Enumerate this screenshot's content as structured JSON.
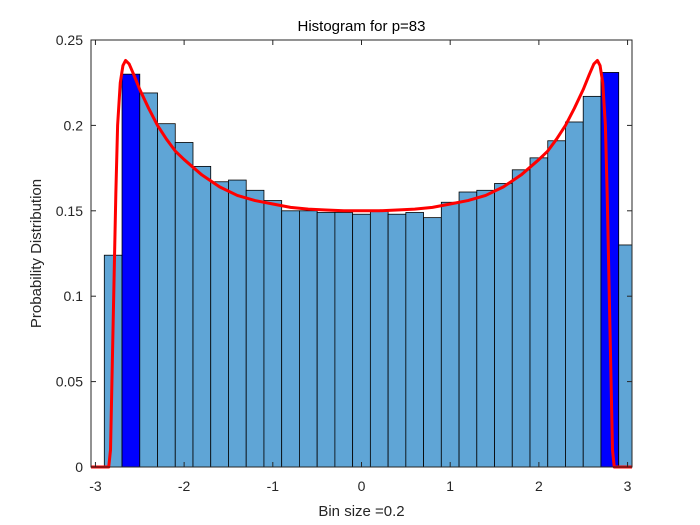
{
  "chart_data": {
    "type": "bar",
    "title": "Histogram for p=83",
    "xlabel": "Bin size =0.2",
    "ylabel": "Probability Distribution",
    "xlim": [
      -3.05,
      3.05
    ],
    "ylim": [
      0,
      0.25
    ],
    "x_ticks": [
      -3,
      -2,
      -1,
      0,
      1,
      2,
      3
    ],
    "x_tick_labels": [
      "-3",
      "-2",
      "-1",
      "0",
      "1",
      "2",
      "3"
    ],
    "y_ticks": [
      0,
      0.05,
      0.1,
      0.15,
      0.2,
      0.25
    ],
    "y_tick_labels": [
      "0",
      "0.05",
      "0.1",
      "0.15",
      "0.2",
      "0.25"
    ],
    "grid": false,
    "bin_width": 0.2,
    "bars": [
      {
        "x0": -2.9,
        "x1": -2.7,
        "value": 0.124,
        "highlight": false
      },
      {
        "x0": -2.7,
        "x1": -2.5,
        "value": 0.23,
        "highlight": true
      },
      {
        "x0": -2.5,
        "x1": -2.3,
        "value": 0.219,
        "highlight": false
      },
      {
        "x0": -2.3,
        "x1": -2.1,
        "value": 0.201,
        "highlight": false
      },
      {
        "x0": -2.1,
        "x1": -1.9,
        "value": 0.19,
        "highlight": false
      },
      {
        "x0": -1.9,
        "x1": -1.7,
        "value": 0.176,
        "highlight": false
      },
      {
        "x0": -1.7,
        "x1": -1.5,
        "value": 0.167,
        "highlight": false
      },
      {
        "x0": -1.5,
        "x1": -1.3,
        "value": 0.168,
        "highlight": false
      },
      {
        "x0": -1.3,
        "x1": -1.1,
        "value": 0.162,
        "highlight": false
      },
      {
        "x0": -1.1,
        "x1": -0.9,
        "value": 0.156,
        "highlight": false
      },
      {
        "x0": -0.9,
        "x1": -0.7,
        "value": 0.15,
        "highlight": false
      },
      {
        "x0": -0.7,
        "x1": -0.5,
        "value": 0.15,
        "highlight": false
      },
      {
        "x0": -0.5,
        "x1": -0.3,
        "value": 0.149,
        "highlight": false
      },
      {
        "x0": -0.3,
        "x1": -0.1,
        "value": 0.149,
        "highlight": false
      },
      {
        "x0": -0.1,
        "x1": 0.1,
        "value": 0.148,
        "highlight": false
      },
      {
        "x0": 0.1,
        "x1": 0.3,
        "value": 0.15,
        "highlight": false
      },
      {
        "x0": 0.3,
        "x1": 0.5,
        "value": 0.148,
        "highlight": false
      },
      {
        "x0": 0.5,
        "x1": 0.7,
        "value": 0.149,
        "highlight": false
      },
      {
        "x0": 0.7,
        "x1": 0.9,
        "value": 0.146,
        "highlight": false
      },
      {
        "x0": 0.9,
        "x1": 1.1,
        "value": 0.155,
        "highlight": false
      },
      {
        "x0": 1.1,
        "x1": 1.3,
        "value": 0.161,
        "highlight": false
      },
      {
        "x0": 1.3,
        "x1": 1.5,
        "value": 0.162,
        "highlight": false
      },
      {
        "x0": 1.5,
        "x1": 1.7,
        "value": 0.166,
        "highlight": false
      },
      {
        "x0": 1.7,
        "x1": 1.9,
        "value": 0.174,
        "highlight": false
      },
      {
        "x0": 1.9,
        "x1": 2.1,
        "value": 0.181,
        "highlight": false
      },
      {
        "x0": 2.1,
        "x1": 2.3,
        "value": 0.191,
        "highlight": false
      },
      {
        "x0": 2.3,
        "x1": 2.5,
        "value": 0.202,
        "highlight": false
      },
      {
        "x0": 2.5,
        "x1": 2.7,
        "value": 0.217,
        "highlight": false
      },
      {
        "x0": 2.7,
        "x1": 2.9,
        "value": 0.231,
        "highlight": true
      },
      {
        "x0": 2.9,
        "x1": 3.1,
        "value": 0.13,
        "highlight": false
      }
    ],
    "curve": {
      "color": "#ff0000",
      "points": [
        [
          -3.05,
          0
        ],
        [
          -2.85,
          0
        ],
        [
          -2.83,
          0.01
        ],
        [
          -2.81,
          0.06
        ],
        [
          -2.79,
          0.11
        ],
        [
          -2.77,
          0.16
        ],
        [
          -2.75,
          0.2
        ],
        [
          -2.72,
          0.225
        ],
        [
          -2.69,
          0.235
        ],
        [
          -2.66,
          0.238
        ],
        [
          -2.62,
          0.236
        ],
        [
          -2.57,
          0.23
        ],
        [
          -2.5,
          0.221
        ],
        [
          -2.4,
          0.21
        ],
        [
          -2.3,
          0.2
        ],
        [
          -2.2,
          0.192
        ],
        [
          -2.1,
          0.185
        ],
        [
          -2.0,
          0.18
        ],
        [
          -1.8,
          0.171
        ],
        [
          -1.6,
          0.164
        ],
        [
          -1.4,
          0.159
        ],
        [
          -1.2,
          0.156
        ],
        [
          -1.0,
          0.154
        ],
        [
          -0.8,
          0.152
        ],
        [
          -0.6,
          0.151
        ],
        [
          -0.4,
          0.1505
        ],
        [
          -0.2,
          0.15
        ],
        [
          0,
          0.15
        ],
        [
          0.2,
          0.15
        ],
        [
          0.4,
          0.1505
        ],
        [
          0.6,
          0.151
        ],
        [
          0.8,
          0.152
        ],
        [
          1.0,
          0.154
        ],
        [
          1.2,
          0.156
        ],
        [
          1.4,
          0.159
        ],
        [
          1.6,
          0.164
        ],
        [
          1.8,
          0.171
        ],
        [
          2.0,
          0.18
        ],
        [
          2.1,
          0.185
        ],
        [
          2.2,
          0.192
        ],
        [
          2.3,
          0.2
        ],
        [
          2.4,
          0.21
        ],
        [
          2.5,
          0.221
        ],
        [
          2.57,
          0.23
        ],
        [
          2.62,
          0.236
        ],
        [
          2.66,
          0.238
        ],
        [
          2.69,
          0.235
        ],
        [
          2.72,
          0.225
        ],
        [
          2.75,
          0.2
        ],
        [
          2.77,
          0.16
        ],
        [
          2.79,
          0.11
        ],
        [
          2.81,
          0.06
        ],
        [
          2.83,
          0.01
        ],
        [
          2.85,
          0
        ],
        [
          3.05,
          0
        ]
      ]
    },
    "colors": {
      "bar_fill": "#5fa5d6",
      "bar_highlight": "#0000ff",
      "bar_edge": "#000000",
      "curve": "#ff0000",
      "axis": "#262626"
    }
  }
}
